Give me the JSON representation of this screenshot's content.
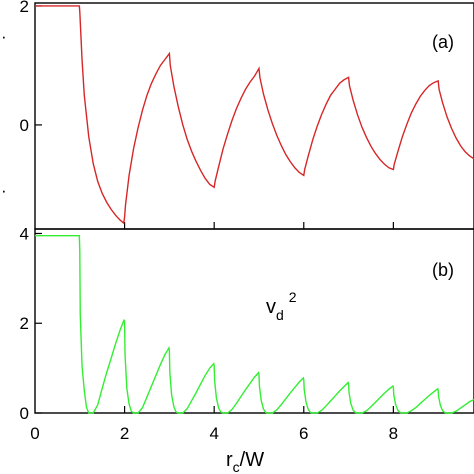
{
  "chart_data": [
    {
      "type": "line",
      "panel_label": "(a)",
      "xlim": [
        0,
        9.8
      ],
      "ylim": [
        -1.75,
        2.05
      ],
      "yticks": [
        0,
        2
      ],
      "ytick_labels": [
        "0",
        "2"
      ],
      "line_color": "#d62728",
      "grid": false,
      "x": [
        0.0,
        0.5,
        0.99,
        1.0,
        1.05,
        1.1,
        1.2,
        1.3,
        1.4,
        1.5,
        1.6,
        1.7,
        1.8,
        1.9,
        1.98,
        2.0,
        2.02,
        2.1,
        2.2,
        2.3,
        2.4,
        2.5,
        2.6,
        2.7,
        2.8,
        2.9,
        3.0,
        3.02,
        3.1,
        3.2,
        3.3,
        3.4,
        3.5,
        3.6,
        3.7,
        3.8,
        3.9,
        4.0,
        4.02,
        4.1,
        4.2,
        4.3,
        4.4,
        4.5,
        4.6,
        4.7,
        4.8,
        4.9,
        5.0,
        5.02,
        5.1,
        5.2,
        5.3,
        5.4,
        5.5,
        5.6,
        5.7,
        5.8,
        5.9,
        6.0,
        6.02,
        6.1,
        6.2,
        6.3,
        6.4,
        6.5,
        6.6,
        6.7,
        6.8,
        6.9,
        7.0,
        7.02,
        7.1,
        7.2,
        7.3,
        7.4,
        7.5,
        7.6,
        7.7,
        7.8,
        7.9,
        8.0,
        8.02,
        8.1,
        8.2,
        8.3,
        8.4,
        8.5,
        8.6,
        8.7,
        8.8,
        8.9,
        9.0,
        9.02,
        9.1,
        9.2,
        9.3,
        9.4,
        9.5,
        9.6,
        9.7,
        9.8
      ],
      "y": [
        2.0,
        2.0,
        2.0,
        1.9,
        1.1,
        0.5,
        -0.2,
        -0.65,
        -0.95,
        -1.15,
        -1.3,
        -1.42,
        -1.52,
        -1.6,
        -1.65,
        -1.55,
        -1.35,
        -0.85,
        -0.4,
        -0.05,
        0.25,
        0.5,
        0.7,
        0.86,
        1.0,
        1.1,
        1.2,
        1.0,
        0.65,
        0.3,
        0.0,
        -0.25,
        -0.45,
        -0.62,
        -0.77,
        -0.9,
        -1.0,
        -1.05,
        -0.95,
        -0.7,
        -0.4,
        -0.15,
        0.08,
        0.28,
        0.45,
        0.6,
        0.72,
        0.82,
        0.95,
        0.8,
        0.52,
        0.25,
        0.02,
        -0.18,
        -0.35,
        -0.5,
        -0.62,
        -0.72,
        -0.8,
        -0.85,
        -0.75,
        -0.52,
        -0.25,
        -0.02,
        0.18,
        0.35,
        0.5,
        0.6,
        0.7,
        0.76,
        0.8,
        0.66,
        0.42,
        0.17,
        -0.04,
        -0.21,
        -0.36,
        -0.48,
        -0.58,
        -0.66,
        -0.72,
        -0.75,
        -0.66,
        -0.45,
        -0.2,
        0.01,
        0.2,
        0.35,
        0.48,
        0.58,
        0.66,
        0.71,
        0.74,
        0.6,
        0.37,
        0.13,
        -0.06,
        -0.22,
        -0.35,
        -0.45,
        -0.52,
        -0.57
      ]
    },
    {
      "type": "line",
      "panel_label": "(b)",
      "annotation": {
        "base": "v",
        "subscript": "d",
        "superscript": "2"
      },
      "xlim": [
        0,
        9.8
      ],
      "ylim": [
        0,
        4.1
      ],
      "xticks": [
        0,
        2,
        4,
        6,
        8
      ],
      "xtick_labels": [
        "0",
        "2",
        "4",
        "6",
        "8"
      ],
      "yticks": [
        0,
        2,
        4
      ],
      "ytick_labels": [
        "0",
        "2",
        "4"
      ],
      "xlabel": {
        "base": "r",
        "subscript": "c",
        "tail": "/W"
      },
      "line_color": "#33ee33",
      "grid": false,
      "x": [
        0.0,
        0.5,
        0.99,
        1.0,
        1.01,
        1.05,
        1.1,
        1.15,
        1.2,
        1.3,
        1.4,
        1.5,
        1.6,
        1.7,
        1.8,
        1.9,
        1.99,
        2.0,
        2.01,
        2.05,
        2.1,
        2.15,
        2.2,
        2.3,
        2.4,
        2.5,
        2.6,
        2.7,
        2.8,
        2.9,
        2.99,
        3.0,
        3.01,
        3.05,
        3.1,
        3.15,
        3.2,
        3.3,
        3.4,
        3.5,
        3.6,
        3.7,
        3.8,
        3.9,
        3.99,
        4.0,
        4.01,
        4.05,
        4.1,
        4.15,
        4.2,
        4.3,
        4.4,
        4.5,
        4.6,
        4.7,
        4.8,
        4.9,
        4.99,
        5.0,
        5.01,
        5.05,
        5.1,
        5.15,
        5.2,
        5.3,
        5.4,
        5.5,
        5.6,
        5.7,
        5.8,
        5.9,
        5.99,
        6.0,
        6.01,
        6.05,
        6.1,
        6.15,
        6.2,
        6.3,
        6.4,
        6.5,
        6.6,
        6.7,
        6.8,
        6.9,
        6.99,
        7.0,
        7.01,
        7.05,
        7.1,
        7.15,
        7.2,
        7.3,
        7.4,
        7.5,
        7.6,
        7.7,
        7.8,
        7.9,
        7.99,
        8.0,
        8.01,
        8.05,
        8.1,
        8.15,
        8.2,
        8.3,
        8.4,
        8.5,
        8.6,
        8.7,
        8.8,
        8.9,
        8.99,
        9.0,
        9.01,
        9.05,
        9.1,
        9.15,
        9.2,
        9.3,
        9.4,
        9.5,
        9.6,
        9.7,
        9.8
      ],
      "y": [
        3.95,
        3.95,
        3.95,
        3.6,
        2.2,
        1.05,
        0.5,
        0.12,
        0.0,
        0.0,
        0.18,
        0.55,
        0.9,
        1.22,
        1.55,
        1.85,
        2.08,
        2.0,
        1.3,
        0.55,
        0.2,
        0.04,
        0.0,
        0.0,
        0.12,
        0.36,
        0.6,
        0.84,
        1.08,
        1.3,
        1.45,
        1.38,
        0.9,
        0.4,
        0.14,
        0.02,
        0.0,
        0.0,
        0.1,
        0.28,
        0.46,
        0.65,
        0.84,
        1.0,
        1.1,
        1.05,
        0.72,
        0.33,
        0.11,
        0.02,
        0.0,
        0.0,
        0.08,
        0.22,
        0.37,
        0.52,
        0.66,
        0.8,
        0.9,
        0.86,
        0.6,
        0.28,
        0.09,
        0.01,
        0.0,
        0.0,
        0.07,
        0.19,
        0.32,
        0.45,
        0.57,
        0.69,
        0.78,
        0.74,
        0.52,
        0.24,
        0.08,
        0.01,
        0.0,
        0.0,
        0.06,
        0.16,
        0.27,
        0.38,
        0.49,
        0.59,
        0.68,
        0.65,
        0.46,
        0.21,
        0.07,
        0.01,
        0.0,
        0.0,
        0.05,
        0.14,
        0.24,
        0.34,
        0.44,
        0.53,
        0.6,
        0.57,
        0.4,
        0.19,
        0.06,
        0.01,
        0.0,
        0.0,
        0.05,
        0.12,
        0.21,
        0.3,
        0.39,
        0.47,
        0.54,
        0.51,
        0.36,
        0.17,
        0.05,
        0.01,
        0.0,
        0.0,
        0.04,
        0.11,
        0.18,
        0.25,
        0.3
      ]
    }
  ],
  "page": {
    "left_edge_mark_top": "·",
    "left_edge_mark_mid": "·"
  }
}
